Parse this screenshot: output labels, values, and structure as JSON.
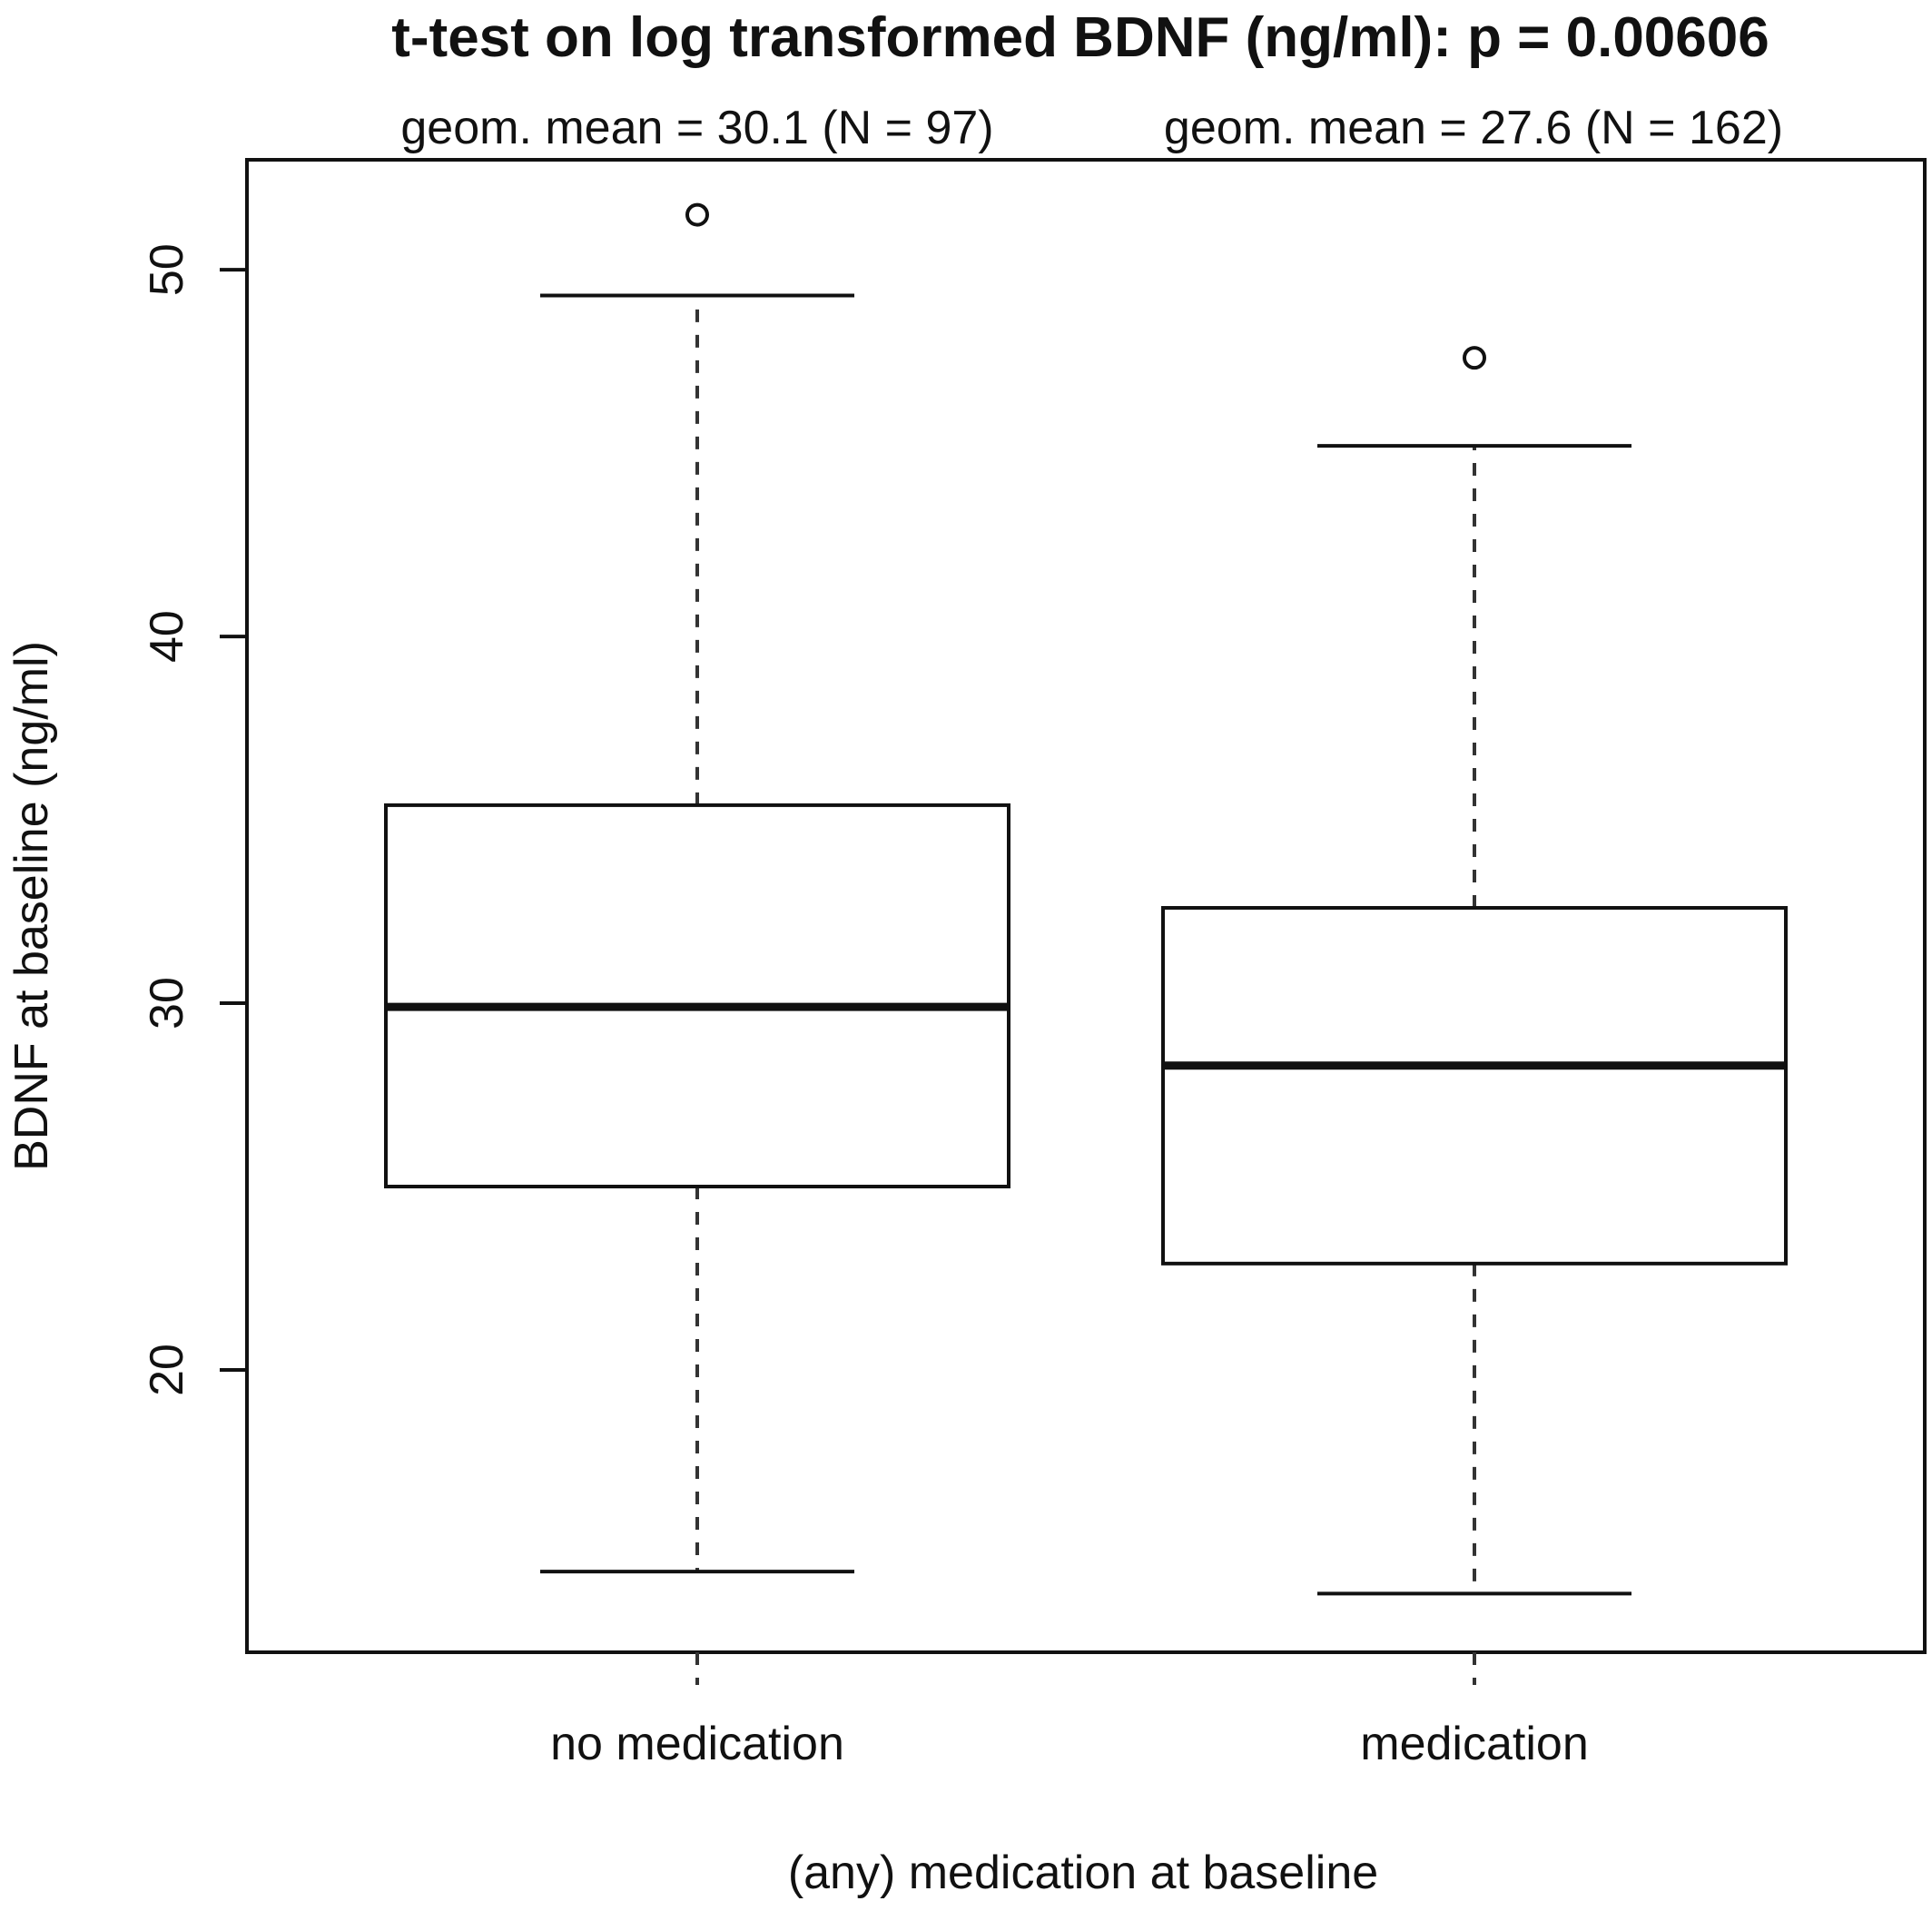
{
  "chart_data": {
    "type": "box",
    "title": "t-test on log transformed BDNF (ng/ml): p =  0.00606",
    "xlabel": "(any) medication at baseline",
    "ylabel": "BDNF at baseline (ng/ml)",
    "ylim": [
      12.3,
      53
    ],
    "yticks": [
      20,
      30,
      40,
      50
    ],
    "grid": false,
    "categories": [
      "no medication",
      "medication"
    ],
    "annotations": [
      "geom. mean = 30.1 (N = 97)",
      "geom. mean = 27.6 (N = 162)"
    ],
    "series": [
      {
        "category": "no medication",
        "whisker_low": 14.5,
        "q1": 25.0,
        "median": 29.9,
        "q3": 35.4,
        "whisker_high": 49.3,
        "outliers": [
          51.5
        ]
      },
      {
        "category": "medication",
        "whisker_low": 13.9,
        "q1": 22.9,
        "median": 28.3,
        "q3": 32.6,
        "whisker_high": 45.2,
        "outliers": [
          47.6
        ]
      }
    ]
  }
}
